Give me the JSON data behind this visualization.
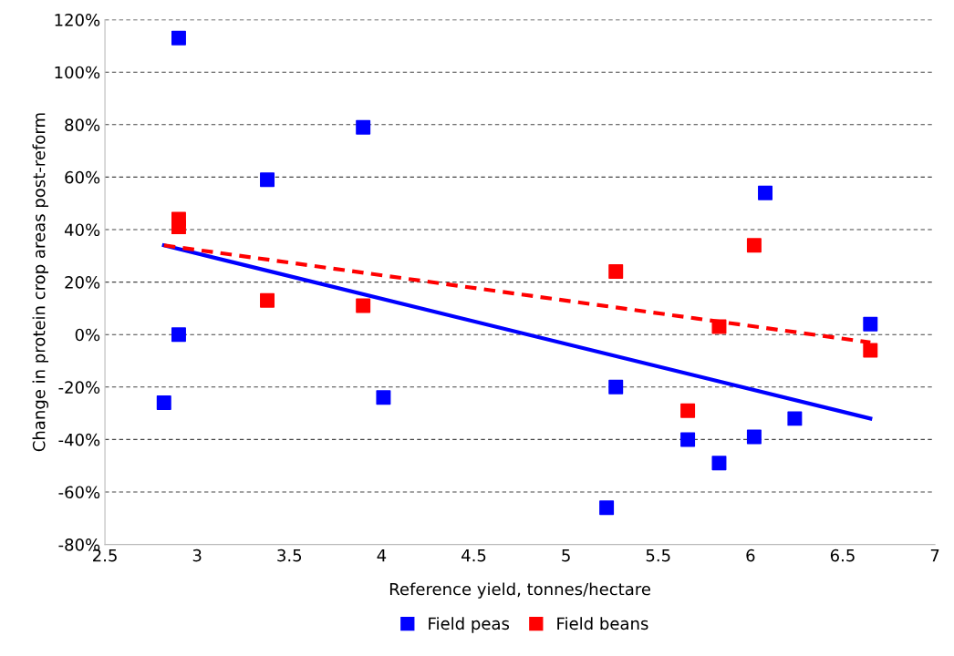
{
  "chart_data": {
    "type": "scatter",
    "xlabel": "Reference yield, tonnes/hectare",
    "ylabel": "Change in protein crop areas post-reform",
    "xlim": [
      2.5,
      7
    ],
    "xticks": [
      2.5,
      3,
      3.5,
      4,
      4.5,
      5,
      5.5,
      6,
      6.5,
      7
    ],
    "ylim": [
      -80,
      120
    ],
    "yticks": [
      {
        "value": -80,
        "label": "-80%"
      },
      {
        "value": -60,
        "label": "-60%"
      },
      {
        "value": -40,
        "label": "-40%"
      },
      {
        "value": -20,
        "label": "-20%"
      },
      {
        "value": 0,
        "label": "0%"
      },
      {
        "value": 20,
        "label": "20%"
      },
      {
        "value": 40,
        "label": "40%"
      },
      {
        "value": 60,
        "label": "60%"
      },
      {
        "value": 80,
        "label": "80%"
      },
      {
        "value": 100,
        "label": "100%"
      },
      {
        "value": 120,
        "label": "120%"
      }
    ],
    "grid": "y",
    "legend": "bottom",
    "marker": "square",
    "series": [
      {
        "name": "Field peas",
        "color": "#0000ff",
        "x": [
          2.82,
          2.9,
          2.9,
          3.38,
          3.9,
          4.01,
          5.27,
          5.22,
          5.66,
          5.83,
          6.02,
          6.08,
          6.24,
          6.65
        ],
        "values": [
          -26,
          113,
          0,
          59,
          79,
          -24,
          -20,
          -66,
          -40,
          -49,
          -39,
          54,
          -32,
          4
        ]
      },
      {
        "name": "Field beans",
        "color": "#ff0000",
        "x": [
          2.9,
          2.9,
          3.38,
          3.9,
          5.27,
          5.66,
          5.83,
          6.02,
          6.65
        ],
        "values": [
          44,
          41,
          13,
          11,
          24,
          -29,
          3,
          34,
          -6
        ]
      },
      {
        "type": "line",
        "color": "#0000ff",
        "line_style": "solid",
        "marker": "none",
        "x": [
          2.82,
          6.65
        ],
        "values": [
          34,
          -32
        ]
      },
      {
        "type": "line",
        "color": "#ff0000",
        "line_style": "dashed",
        "marker": "none",
        "x": [
          2.82,
          6.65
        ],
        "values": [
          34,
          -3
        ]
      }
    ]
  }
}
